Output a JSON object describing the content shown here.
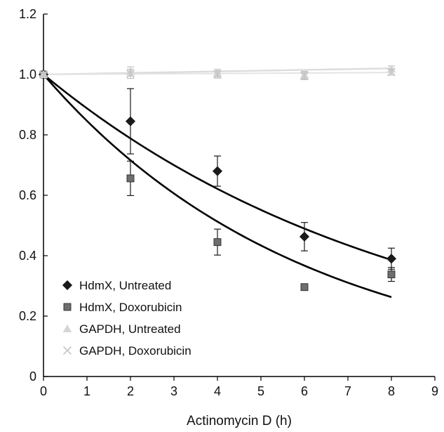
{
  "chart_data": {
    "type": "scatter",
    "title": "",
    "xlabel": "Actinomycin D (h)",
    "ylabel": "",
    "xlim": [
      0,
      9
    ],
    "ylim": [
      0,
      1.2
    ],
    "xticks": [
      0,
      1,
      2,
      3,
      4,
      5,
      6,
      7,
      8,
      9
    ],
    "yticks": [
      0,
      0.2,
      0.4,
      0.6,
      0.8,
      1.0,
      1.2
    ],
    "ytick_labels": [
      "0",
      "0.2",
      "0.4",
      "0.6",
      "0.8",
      "1.0",
      "1.2"
    ],
    "grid": false,
    "legend_position": "bottom-left",
    "series": [
      {
        "name": "HdmX, Untreated",
        "marker": "diamond",
        "color": "#1a1a1a",
        "x": [
          0,
          2,
          4,
          6,
          8
        ],
        "y": [
          1.0,
          0.845,
          0.68,
          0.463,
          0.39
        ],
        "err": [
          0,
          0.108,
          0.05,
          0.047,
          0.035
        ],
        "fit": {
          "a": 1.0,
          "k": 0.119
        }
      },
      {
        "name": "HdmX, Doxorubicin",
        "marker": "square",
        "color": "#6e6e6e",
        "x": [
          0,
          2,
          4,
          6,
          8
        ],
        "y": [
          1.0,
          0.656,
          0.445,
          0.296,
          0.338
        ],
        "err": [
          0,
          0.057,
          0.043,
          0.005,
          0.023
        ],
        "fit": {
          "a": 1.0,
          "k": 0.167
        }
      },
      {
        "name": "GAPDH, Untreated",
        "marker": "triangle",
        "color": "#d6d6d6",
        "x": [
          0,
          2,
          4,
          6,
          8
        ],
        "y": [
          1.0,
          1.01,
          1.005,
          0.998,
          1.018
        ],
        "err": [
          0.005,
          0.015,
          0.012,
          0.012,
          0.01
        ],
        "fit": {
          "a": 1.0,
          "k": -0.0025
        }
      },
      {
        "name": "GAPDH, Doxorubicin",
        "marker": "x",
        "color": "#c8c8c8",
        "x": [
          0,
          2,
          4,
          6,
          8
        ],
        "y": [
          1.0,
          1.002,
          1.0,
          0.995,
          1.008
        ],
        "err": [
          0.005,
          0.015,
          0.012,
          0.012,
          0.01
        ],
        "fit": {
          "a": 1.0,
          "k": -0.0008
        }
      }
    ]
  }
}
